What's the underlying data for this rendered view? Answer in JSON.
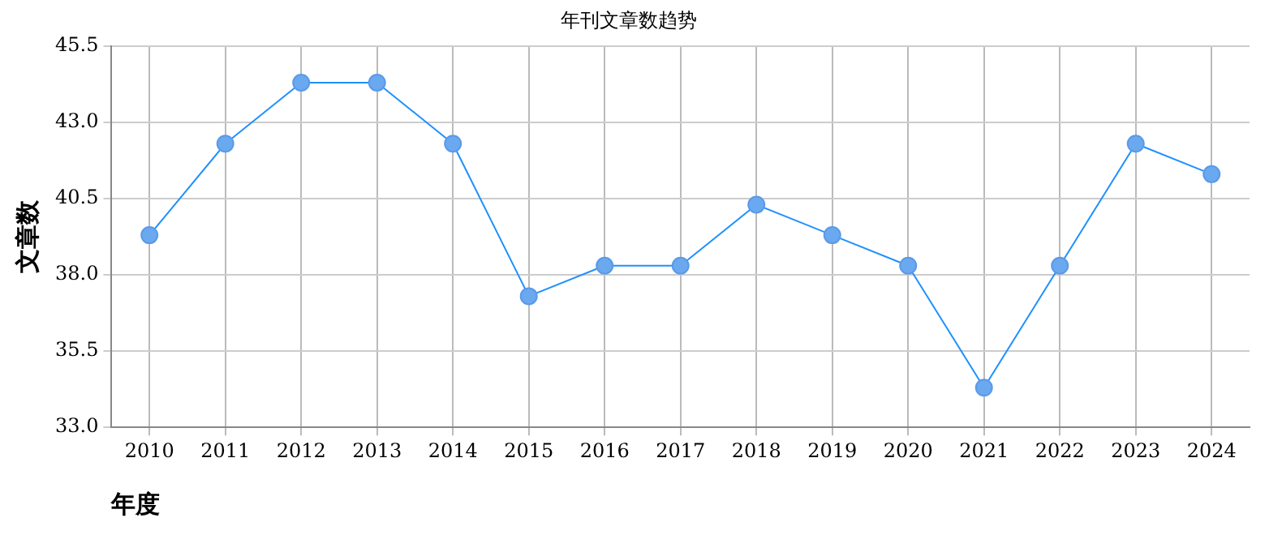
{
  "chart_data": {
    "type": "line",
    "title": "年刊文章数趋势",
    "xlabel": "年度",
    "ylabel": "文章数",
    "categories": [
      "2010",
      "2011",
      "2012",
      "2013",
      "2014",
      "2015",
      "2016",
      "2017",
      "2018",
      "2019",
      "2020",
      "2021",
      "2022",
      "2023",
      "2024"
    ],
    "series": [
      {
        "color": "#1e90ff",
        "values": [
          39.3,
          42.3,
          44.3,
          44.3,
          42.3,
          37.3,
          38.3,
          38.3,
          40.3,
          39.3,
          38.3,
          34.3,
          38.3,
          42.3,
          41.3
        ]
      }
    ],
    "ylim": [
      33,
      45.5
    ],
    "yticks": [
      {
        "value": 33,
        "label": "33.0"
      },
      35.5,
      {
        "value": 38,
        "label": "38.0"
      },
      40.5,
      {
        "value": 43,
        "label": "43.0"
      },
      45.5
    ],
    "grid": true,
    "legend": false,
    "marker": "circle",
    "line_style": "solid"
  }
}
